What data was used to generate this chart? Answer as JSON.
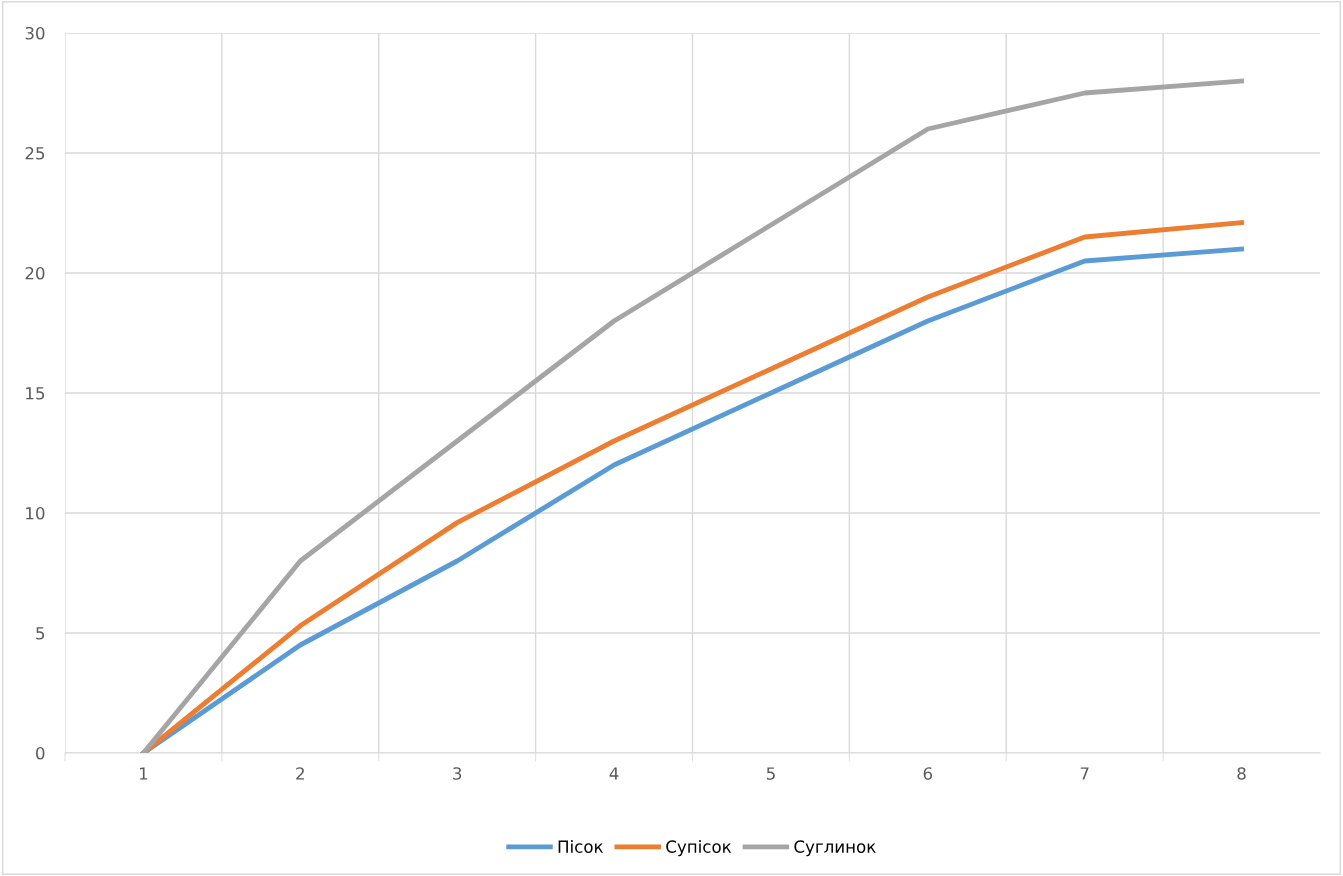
{
  "chart_data": {
    "type": "line",
    "categories": [
      "1",
      "2",
      "3",
      "4",
      "5",
      "6",
      "7",
      "8"
    ],
    "series": [
      {
        "name": "Пісок",
        "color": "#5b9bd5",
        "values": [
          0,
          4.5,
          8,
          12,
          15,
          18,
          20.5,
          21
        ]
      },
      {
        "name": "Супісок",
        "color": "#ed7d31",
        "values": [
          0,
          5.3,
          9.6,
          13,
          16,
          19,
          21.5,
          22.1
        ]
      },
      {
        "name": "Суглинок",
        "color": "#a5a5a5",
        "values": [
          0,
          8,
          13,
          18,
          22,
          26,
          27.5,
          28
        ]
      }
    ],
    "ylim": [
      0,
      30
    ],
    "yticks": [
      0,
      5,
      10,
      15,
      20,
      25,
      30
    ],
    "grid": true,
    "legend": "bottom",
    "marker": "none",
    "line_style": "solid"
  }
}
